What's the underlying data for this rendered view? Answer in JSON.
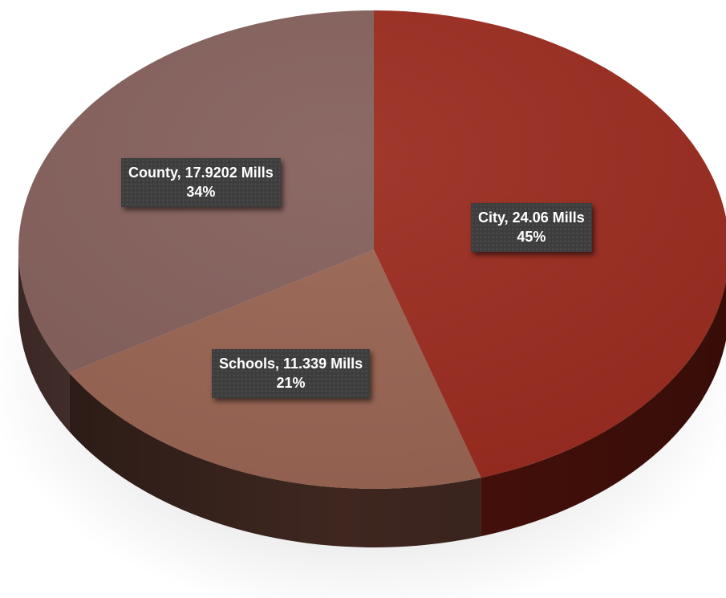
{
  "chart_data": {
    "type": "pie",
    "style": "3d",
    "slices": [
      {
        "name": "City",
        "value": 24.06,
        "unit": "Mills",
        "percent_label": "45%",
        "color": "#9b2c20",
        "side_color": "#4a110b",
        "label_line1": "City, 24.06 Mills"
      },
      {
        "name": "Schools",
        "value": 11.339,
        "unit": "Mills",
        "percent_label": "21%",
        "color": "#9a6553",
        "side_color": "#3f2720",
        "label_line1": "Schools, 11.339 Mills"
      },
      {
        "name": "County",
        "value": 17.9202,
        "unit": "Mills",
        "percent_label": "34%",
        "color": "#85605c",
        "side_color": "#5b3e3a",
        "label_line1": "County, 17.9202 Mills"
      }
    ],
    "start": "12 o'clock",
    "direction": "clockwise",
    "legend": "none",
    "data_labels": "boxed, inside slices"
  }
}
